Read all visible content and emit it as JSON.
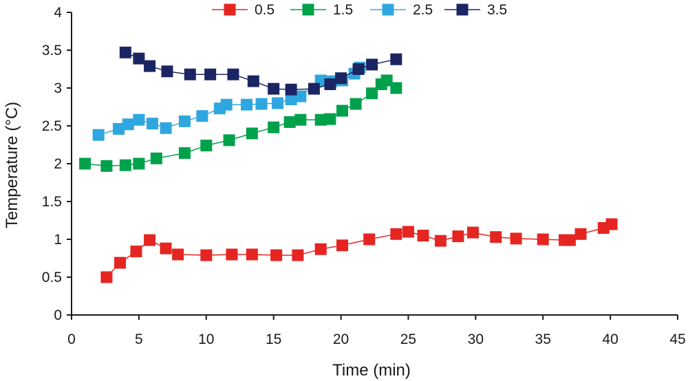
{
  "chart_data": {
    "type": "line",
    "title": "",
    "xlabel": "Time (min)",
    "ylabel": "Temperature (°C)",
    "xlim": [
      0,
      45
    ],
    "ylim": [
      0,
      4
    ],
    "xticks": [
      0,
      5,
      10,
      15,
      20,
      25,
      30,
      35,
      40,
      45
    ],
    "yticks": [
      0,
      0.5,
      1,
      1.5,
      2,
      2.5,
      3,
      3.5,
      4
    ],
    "xtick_labels": [
      "0",
      "5",
      "10",
      "15",
      "20",
      "25",
      "30",
      "35",
      "40",
      "45"
    ],
    "ytick_labels": [
      "0",
      "0.5",
      "1",
      "1.5",
      "2",
      "2.5",
      "3",
      "3.5",
      "4"
    ],
    "grid": false,
    "legend_position": "top-center",
    "series": [
      {
        "name": "0.5",
        "color": "#e52521",
        "marker": "square",
        "x": [
          2.6,
          3.6,
          4.8,
          5.8,
          7.0,
          7.9,
          10.0,
          11.9,
          13.4,
          15.2,
          16.8,
          18.5,
          20.1,
          22.1,
          24.1,
          25.0,
          26.1,
          27.4,
          28.7,
          29.8,
          31.5,
          33.0,
          35.0,
          36.6,
          37.0,
          37.8,
          39.5,
          40.1
        ],
        "y": [
          0.5,
          0.69,
          0.84,
          0.99,
          0.88,
          0.8,
          0.79,
          0.8,
          0.8,
          0.79,
          0.79,
          0.87,
          0.92,
          1.0,
          1.07,
          1.1,
          1.05,
          0.98,
          1.04,
          1.09,
          1.03,
          1.01,
          1.0,
          0.99,
          0.99,
          1.07,
          1.15,
          1.2
        ]
      },
      {
        "name": "1.5",
        "color": "#00a14b",
        "marker": "square",
        "x": [
          1.0,
          2.6,
          4.0,
          5.0,
          6.3,
          8.4,
          10.0,
          11.7,
          13.4,
          15.0,
          16.2,
          17.0,
          18.5,
          19.2,
          20.1,
          21.1,
          22.3,
          23.0,
          23.4,
          24.1
        ],
        "y": [
          2.0,
          1.97,
          1.98,
          2.0,
          2.07,
          2.14,
          2.24,
          2.31,
          2.4,
          2.48,
          2.55,
          2.58,
          2.58,
          2.59,
          2.7,
          2.79,
          2.93,
          3.05,
          3.1,
          3.0
        ],
        "labels": []
      },
      {
        "name": "2.5",
        "color": "#2ea7e0",
        "marker": "square",
        "x": [
          2.0,
          3.5,
          4.2,
          5.0,
          6.0,
          7.0,
          8.4,
          9.7,
          11.0,
          11.5,
          13.0,
          14.1,
          15.3,
          16.3,
          17.0,
          18.5,
          19.3,
          20.1,
          21.0,
          21.4
        ],
        "y": [
          2.38,
          2.46,
          2.52,
          2.58,
          2.53,
          2.47,
          2.56,
          2.63,
          2.73,
          2.78,
          2.78,
          2.79,
          2.8,
          2.85,
          2.89,
          3.1,
          3.09,
          3.1,
          3.19,
          3.27
        ]
      },
      {
        "name": "3.5",
        "color": "#1c2563",
        "marker": "square",
        "x": [
          4.0,
          5.0,
          5.8,
          7.1,
          8.8,
          10.3,
          12.0,
          13.5,
          15.0,
          16.3,
          18.0,
          19.2,
          20.0,
          21.3,
          22.3,
          24.1
        ],
        "y": [
          3.47,
          3.39,
          3.29,
          3.22,
          3.18,
          3.18,
          3.18,
          3.09,
          2.99,
          2.98,
          2.99,
          3.05,
          3.13,
          3.25,
          3.31,
          3.38
        ]
      }
    ]
  }
}
